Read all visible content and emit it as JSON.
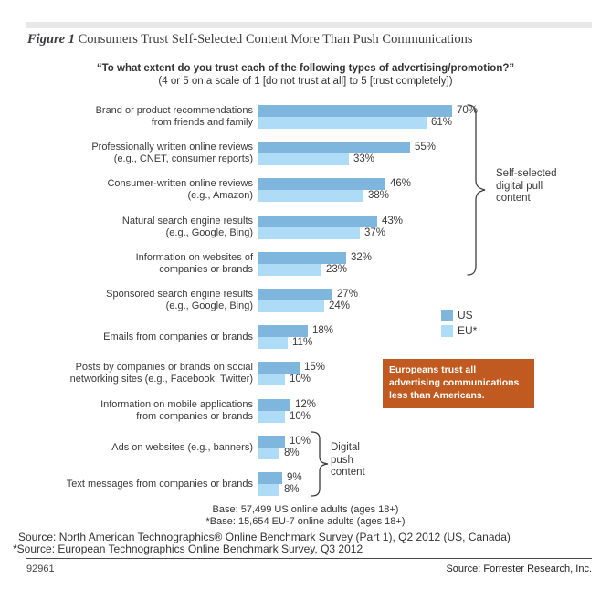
{
  "figure": {
    "label": "Figure 1",
    "title": "Consumers Trust Self-Selected Content More Than Push Communications"
  },
  "question": {
    "title": "“To what extent do you trust each of the following types of advertising/promotion?”",
    "subtitle": "(4 or 5 on a scale of 1 [do not trust at all] to 5 [trust completely])"
  },
  "legend": {
    "us_label": "US",
    "eu_label": "EU*"
  },
  "colors": {
    "us": "#7EB6DE",
    "eu": "#AEDBF5",
    "callout_bg": "#C05A20",
    "text": "#3A3A3A"
  },
  "chart_data": {
    "type": "bar",
    "orientation": "horizontal",
    "unit": "%",
    "xlim": [
      0,
      75
    ],
    "grid": false,
    "legend_position": "right-middle",
    "categories": [
      {
        "label_lines": [
          "Brand or product recommendations",
          "from friends and family"
        ]
      },
      {
        "label_lines": [
          "Professionally written online reviews",
          "(e.g., CNET, consumer reports)"
        ]
      },
      {
        "label_lines": [
          "Consumer-written online reviews",
          "(e.g., Amazon)"
        ]
      },
      {
        "label_lines": [
          "Natural search engine results",
          "(e.g., Google, Bing)"
        ]
      },
      {
        "label_lines": [
          "Information on websites of",
          "companies or brands"
        ]
      },
      {
        "label_lines": [
          "Sponsored search engine results",
          "(e.g., Google, Bing)"
        ]
      },
      {
        "label_lines": [
          "Emails from companies or brands"
        ]
      },
      {
        "label_lines": [
          "Posts by companies or brands on social",
          "networking sites (e.g., Facebook, Twitter)"
        ]
      },
      {
        "label_lines": [
          "Information on mobile applications",
          "from companies or brands"
        ]
      },
      {
        "label_lines": [
          "Ads on websites (e.g., banners)"
        ]
      },
      {
        "label_lines": [
          "Text messages from companies or brands"
        ]
      }
    ],
    "series": [
      {
        "name": "US",
        "values": [
          70,
          55,
          46,
          43,
          32,
          27,
          18,
          15,
          12,
          10,
          9
        ]
      },
      {
        "name": "EU*",
        "values": [
          61,
          33,
          38,
          37,
          23,
          24,
          11,
          10,
          10,
          8,
          8
        ]
      }
    ]
  },
  "annotations": {
    "pull_brace": {
      "lines": [
        "Self-selected",
        "digital pull",
        "content"
      ],
      "covers_rows": "1-5"
    },
    "push_brace": {
      "lines": [
        "Digital",
        "push",
        "content"
      ],
      "covers_rows": "10-11"
    },
    "callout": {
      "lines": [
        "Europeans trust all",
        "advertising communications",
        "less than Americans."
      ]
    }
  },
  "footnotes": {
    "base_us": "Base: 57,499 US online adults (ages 18+)",
    "base_eu": "*Base: 15,654 EU-7 online adults (ages 18+)",
    "source_us": "Source: North American Technographics® Online Benchmark Survey (Part 1), Q2 2012 (US, Canada)",
    "source_eu": "*Source: European Technographics Online Benchmark Survey, Q3 2012"
  },
  "footer": {
    "doc_number": "92961",
    "source": "Source: Forrester Research, Inc."
  }
}
